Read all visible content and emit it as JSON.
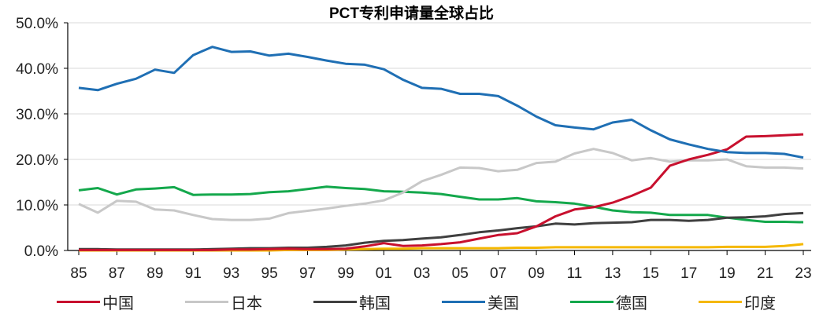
{
  "chart_data": {
    "type": "line",
    "title": "PCT专利申请量全球占比",
    "xlabel": "",
    "ylabel": "",
    "ylim": [
      0,
      50
    ],
    "y_ticks": [
      "0.0%",
      "10.0%",
      "20.0%",
      "30.0%",
      "40.0%",
      "50.0%"
    ],
    "x_tick_labels": [
      "85",
      "87",
      "89",
      "91",
      "93",
      "95",
      "97",
      "99",
      "01",
      "03",
      "05",
      "07",
      "09",
      "11",
      "13",
      "15",
      "17",
      "19",
      "21",
      "23"
    ],
    "x": [
      1985,
      1986,
      1987,
      1988,
      1989,
      1990,
      1991,
      1992,
      1993,
      1994,
      1995,
      1996,
      1997,
      1998,
      1999,
      2000,
      2001,
      2002,
      2003,
      2004,
      2005,
      2006,
      2007,
      2008,
      2009,
      2010,
      2011,
      2012,
      2013,
      2014,
      2015,
      2016,
      2017,
      2018,
      2019,
      2020,
      2021,
      2022,
      2023
    ],
    "legend_position": "bottom",
    "grid": true,
    "series": [
      {
        "name": "中国",
        "color": "#C8102E",
        "values": [
          0.1,
          0.1,
          0.1,
          0.1,
          0.1,
          0.1,
          0.1,
          0.1,
          0.2,
          0.2,
          0.3,
          0.4,
          0.3,
          0.3,
          0.4,
          0.9,
          1.6,
          1.0,
          1.1,
          1.4,
          1.8,
          2.6,
          3.4,
          3.8,
          5.3,
          7.5,
          9.0,
          9.5,
          10.5,
          12.0,
          13.8,
          18.6,
          20.0,
          21.0,
          22.2,
          25.0,
          25.1,
          25.3,
          25.5
        ]
      },
      {
        "name": "日本",
        "color": "#C8C8C8",
        "values": [
          10.2,
          8.3,
          10.9,
          10.7,
          9.0,
          8.8,
          7.8,
          6.9,
          6.7,
          6.7,
          7.0,
          8.2,
          8.7,
          9.2,
          9.8,
          10.3,
          11.0,
          12.7,
          15.2,
          16.6,
          18.2,
          18.1,
          17.4,
          17.7,
          19.2,
          19.5,
          21.3,
          22.3,
          21.4,
          19.8,
          20.3,
          19.5,
          19.8,
          19.8,
          20.0,
          18.5,
          18.2,
          18.2,
          18.0
        ]
      },
      {
        "name": "韩国",
        "color": "#404040",
        "values": [
          0.3,
          0.3,
          0.2,
          0.2,
          0.2,
          0.2,
          0.2,
          0.3,
          0.4,
          0.5,
          0.5,
          0.6,
          0.6,
          0.8,
          1.1,
          1.7,
          2.1,
          2.3,
          2.6,
          2.9,
          3.4,
          4.0,
          4.4,
          4.9,
          5.3,
          5.9,
          5.7,
          6.0,
          6.1,
          6.2,
          6.7,
          6.7,
          6.5,
          6.7,
          7.2,
          7.3,
          7.5,
          8.0,
          8.2
        ]
      },
      {
        "name": "美国",
        "color": "#1F6FB4",
        "values": [
          35.7,
          35.2,
          36.6,
          37.7,
          39.7,
          39.0,
          42.9,
          44.7,
          43.6,
          43.7,
          42.8,
          43.2,
          42.5,
          41.7,
          41.0,
          40.8,
          39.8,
          37.5,
          35.7,
          35.5,
          34.4,
          34.4,
          33.9,
          31.8,
          29.4,
          27.5,
          27.0,
          26.6,
          28.1,
          28.7,
          26.4,
          24.4,
          23.3,
          22.3,
          21.6,
          21.4,
          21.4,
          21.2,
          20.4
        ]
      },
      {
        "name": "德国",
        "color": "#14A84C",
        "values": [
          13.2,
          13.7,
          12.3,
          13.4,
          13.6,
          13.9,
          12.2,
          12.3,
          12.3,
          12.4,
          12.8,
          13.0,
          13.5,
          14.0,
          13.7,
          13.5,
          13.0,
          12.9,
          12.7,
          12.4,
          11.8,
          11.2,
          11.2,
          11.5,
          10.8,
          10.6,
          10.3,
          9.6,
          8.8,
          8.4,
          8.3,
          7.8,
          7.8,
          7.8,
          7.2,
          6.7,
          6.3,
          6.3,
          6.2
        ]
      },
      {
        "name": "印度",
        "color": "#F5B800",
        "values": [
          0.0,
          0.0,
          0.0,
          0.0,
          0.0,
          0.0,
          0.0,
          0.0,
          0.0,
          0.0,
          0.0,
          0.1,
          0.1,
          0.1,
          0.2,
          0.3,
          0.4,
          0.4,
          0.5,
          0.5,
          0.5,
          0.5,
          0.5,
          0.6,
          0.6,
          0.7,
          0.7,
          0.7,
          0.7,
          0.7,
          0.7,
          0.7,
          0.7,
          0.7,
          0.8,
          0.8,
          0.8,
          1.0,
          1.4
        ]
      }
    ]
  }
}
